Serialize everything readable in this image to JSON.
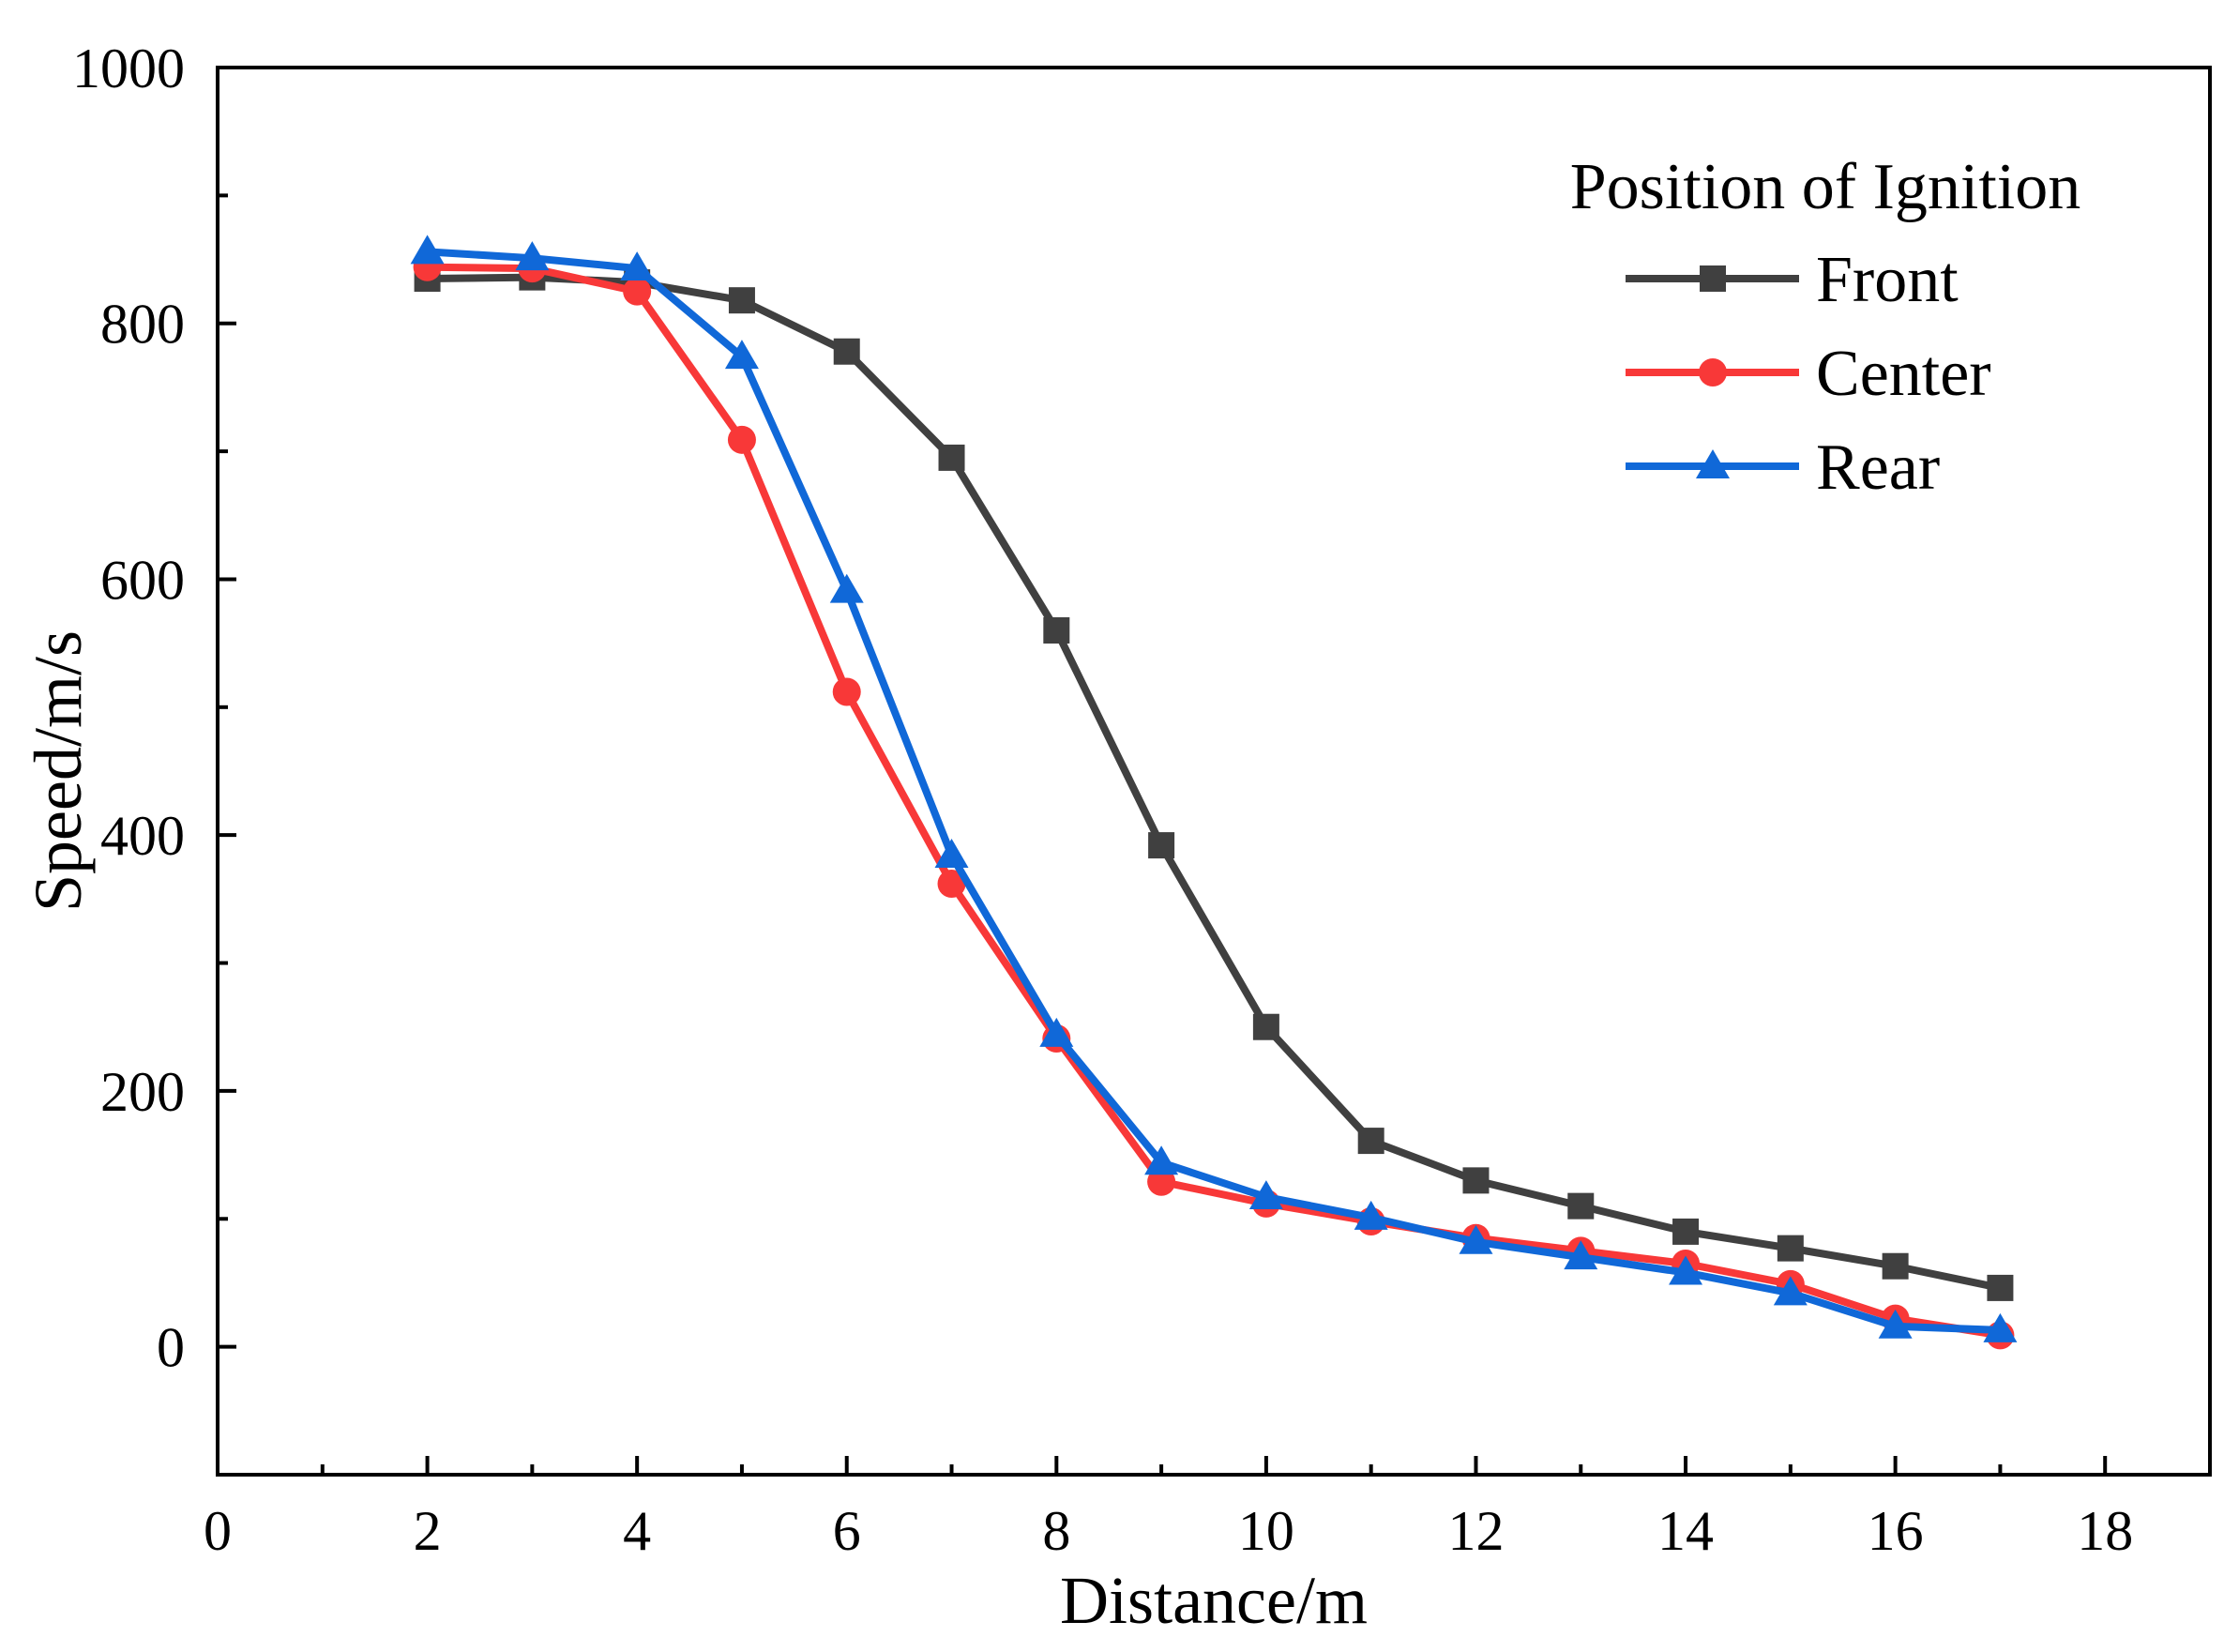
{
  "chart_data": {
    "type": "line",
    "title": "",
    "xlabel": "Distance/m",
    "ylabel": "Speed/m/s",
    "xlim": [
      0,
      19
    ],
    "ylim": [
      -100,
      1000
    ],
    "xticks": [
      0,
      2,
      4,
      6,
      8,
      10,
      12,
      14,
      16,
      18
    ],
    "yticks": [
      0,
      200,
      400,
      600,
      800,
      1000
    ],
    "legend": {
      "title": "Position of Ignition",
      "placement": "top-right"
    },
    "x": [
      2,
      3,
      4,
      5,
      6,
      7,
      8,
      9,
      10,
      11,
      12,
      13,
      14,
      15,
      16,
      17
    ],
    "series": [
      {
        "name": "Front",
        "color": "#404040",
        "marker": "square",
        "values": [
          835,
          836,
          832,
          818,
          778,
          695,
          560,
          392,
          250,
          161,
          130,
          110,
          90,
          77,
          63,
          46
        ]
      },
      {
        "name": "Center",
        "color": "#f83838",
        "marker": "circle",
        "values": [
          844,
          843,
          825,
          709,
          512,
          362,
          241,
          129,
          112,
          98,
          85,
          75,
          65,
          49,
          22,
          9
        ]
      },
      {
        "name": "Rear",
        "color": "#1068d8",
        "marker": "triangle",
        "values": [
          856,
          851,
          843,
          774,
          591,
          384,
          244,
          144,
          117,
          101,
          82,
          70,
          58,
          42,
          16,
          13
        ]
      }
    ]
  }
}
